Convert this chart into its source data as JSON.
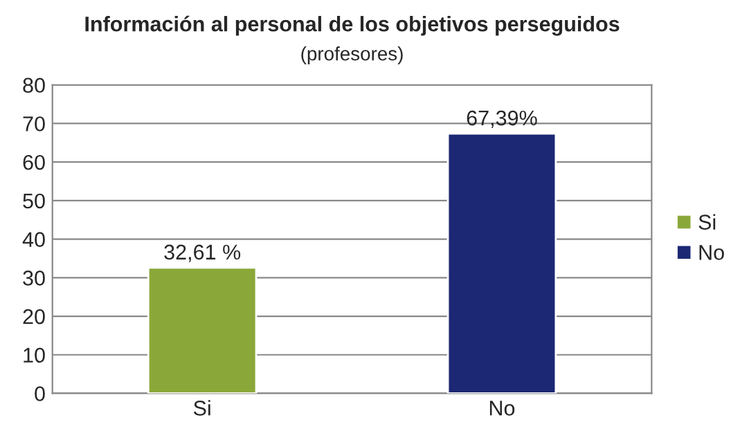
{
  "chart_data": {
    "type": "bar",
    "title": "Información al personal de los objetivos perseguidos",
    "subtitle": "(profesores)",
    "categories": [
      "Si",
      "No"
    ],
    "series": [
      {
        "name": "Si",
        "color": "#8aa83a",
        "values": [
          32.61,
          null
        ],
        "value_labels": [
          "32,61 %",
          null
        ]
      },
      {
        "name": "No",
        "color": "#1c2873",
        "values": [
          null,
          67.39
        ],
        "value_labels": [
          null,
          "67,39%"
        ]
      }
    ],
    "ylim": [
      0,
      80
    ],
    "yticks": [
      0,
      10,
      20,
      30,
      40,
      50,
      60,
      70,
      80
    ],
    "grid": "y",
    "legend": "right"
  }
}
